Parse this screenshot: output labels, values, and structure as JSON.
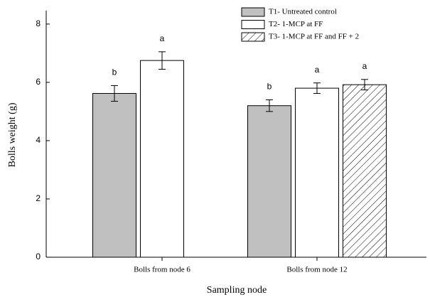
{
  "chart_data": {
    "type": "bar",
    "x_label": "Sampling node",
    "y_label": "Bolls weight (g)",
    "categories": [
      "Bolls from node 6",
      "Bolls from node 12"
    ],
    "series": [
      {
        "name": "T1- Untreated control",
        "color": "#c0c0c0",
        "hatch": false,
        "values": [
          5.62,
          5.2
        ],
        "errors": [
          0.27,
          0.2
        ],
        "labels": [
          "b",
          "b"
        ]
      },
      {
        "name": "T2- 1-MCP at FF",
        "color": "#ffffff",
        "hatch": false,
        "values": [
          6.75,
          5.8
        ],
        "errors": [
          0.3,
          0.18
        ],
        "labels": [
          "a",
          "a"
        ]
      },
      {
        "name": "T3- 1-MCP at FF and FF + 2",
        "color": "#ffffff",
        "hatch": true,
        "values": [
          null,
          5.92
        ],
        "errors": [
          null,
          0.18
        ],
        "labels": [
          null,
          "a"
        ]
      }
    ],
    "ylim": [
      0,
      8.46
    ],
    "yticks": [
      0,
      2,
      4,
      6,
      8
    ],
    "grid": false,
    "legend": "upper-right"
  }
}
